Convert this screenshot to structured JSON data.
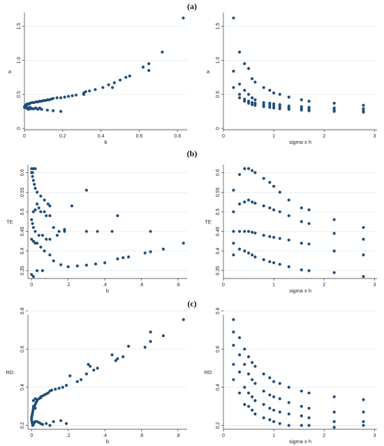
{
  "panel_labels": [
    "(a)",
    "(b)",
    "(c)"
  ],
  "colors": {
    "point": "#1f4e79",
    "grid": "#dfe9f0"
  },
  "chart_data": [
    {
      "type": "scatter",
      "title": "",
      "xlabel": "b",
      "ylabel": "a",
      "xlim": [
        0,
        0.85
      ],
      "ylim": [
        -0.02,
        1.7
      ],
      "xticks": [
        0,
        0.2,
        0.4,
        0.6,
        0.8
      ],
      "xticklabels": [
        "0",
        "0.2",
        "0.4",
        "0.6",
        "0.8"
      ],
      "yticks": [
        0,
        0.5,
        1,
        1.5
      ],
      "yticklabels": [
        "0",
        "0.5",
        "1.0",
        "1.5"
      ],
      "grid": true,
      "x": [
        0.83,
        0.72,
        0.65,
        0.65,
        0.62,
        0.55,
        0.53,
        0.5,
        0.47,
        0.46,
        0.44,
        0.41,
        0.37,
        0.34,
        0.32,
        0.31,
        0.31,
        0.27,
        0.25,
        0.23,
        0.21,
        0.19,
        0.17,
        0.15,
        0.14,
        0.13,
        0.12,
        0.11,
        0.1,
        0.09,
        0.08,
        0.07,
        0.06,
        0.05,
        0.04,
        0.03,
        0.025,
        0.02,
        0.015,
        0.01,
        0.008,
        0.006,
        0.004,
        0.003,
        0.002,
        0.001,
        0.0,
        0.005,
        0.01,
        0.02,
        0.03,
        0.05,
        0.07,
        0.09,
        0.12,
        0.15,
        0.19,
        0.02,
        0.04,
        0.06,
        0.08,
        0.03,
        0.01,
        0.005,
        0.015
      ],
      "y": [
        1.62,
        1.12,
        0.95,
        0.85,
        0.9,
        0.77,
        0.75,
        0.71,
        0.67,
        0.6,
        0.64,
        0.6,
        0.57,
        0.55,
        0.54,
        0.5,
        0.52,
        0.49,
        0.48,
        0.47,
        0.46,
        0.45,
        0.45,
        0.44,
        0.43,
        0.42,
        0.42,
        0.41,
        0.41,
        0.4,
        0.4,
        0.39,
        0.39,
        0.38,
        0.38,
        0.37,
        0.36,
        0.36,
        0.35,
        0.35,
        0.34,
        0.34,
        0.33,
        0.33,
        0.32,
        0.32,
        0.31,
        0.31,
        0.3,
        0.3,
        0.29,
        0.29,
        0.28,
        0.28,
        0.27,
        0.26,
        0.25,
        0.28,
        0.29,
        0.3,
        0.3,
        0.31,
        0.33,
        0.34,
        0.36
      ]
    },
    {
      "type": "scatter",
      "title": "",
      "xlabel": "sigma x h",
      "ylabel": "a",
      "xlim": [
        0,
        3.05
      ],
      "ylim": [
        -0.02,
        1.7
      ],
      "xticks": [
        0,
        1,
        2,
        3
      ],
      "xticklabels": [
        "0",
        "1",
        "2",
        "3"
      ],
      "yticks": [
        0,
        0.5,
        1,
        1.5
      ],
      "yticklabels": [
        "0",
        "0.5",
        "1.0",
        "1.5"
      ],
      "grid": true,
      "x": [
        0.2,
        0.2,
        0.2,
        0.32,
        0.32,
        0.32,
        0.32,
        0.42,
        0.42,
        0.42,
        0.42,
        0.5,
        0.5,
        0.5,
        0.5,
        0.57,
        0.57,
        0.57,
        0.57,
        0.63,
        0.63,
        0.63,
        0.63,
        0.8,
        0.8,
        0.8,
        0.8,
        0.92,
        0.92,
        0.92,
        0.92,
        1.0,
        1.0,
        1.0,
        1.0,
        1.12,
        1.12,
        1.12,
        1.12,
        1.3,
        1.3,
        1.3,
        1.3,
        1.55,
        1.55,
        1.55,
        1.55,
        1.7,
        1.7,
        1.7,
        1.7,
        2.2,
        2.2,
        2.2,
        2.2,
        2.78,
        2.78,
        2.78,
        2.78
      ],
      "y": [
        1.62,
        0.84,
        0.6,
        1.12,
        0.65,
        0.5,
        0.45,
        0.95,
        0.56,
        0.43,
        0.4,
        0.88,
        0.5,
        0.4,
        0.37,
        0.73,
        0.45,
        0.38,
        0.35,
        0.68,
        0.42,
        0.37,
        0.34,
        0.6,
        0.38,
        0.35,
        0.32,
        0.56,
        0.37,
        0.34,
        0.31,
        0.52,
        0.36,
        0.33,
        0.3,
        0.5,
        0.35,
        0.32,
        0.29,
        0.46,
        0.33,
        0.3,
        0.28,
        0.42,
        0.32,
        0.29,
        0.27,
        0.4,
        0.31,
        0.28,
        0.26,
        0.37,
        0.3,
        0.27,
        0.25,
        0.34,
        0.29,
        0.26,
        0.24
      ]
    },
    {
      "type": "scatter",
      "title": "",
      "xlabel": "b",
      "ylabel": "TE",
      "xlim": [
        -0.02,
        0.85
      ],
      "ylim": [
        0.33,
        0.62
      ],
      "xticks": [
        0,
        0.2,
        0.4,
        0.6,
        0.8
      ],
      "xticklabels": [
        "0",
        ".2",
        ".4",
        ".6",
        ".8"
      ],
      "yticks": [
        0.35,
        0.4,
        0.45,
        0.5,
        0.55,
        0.6
      ],
      "yticklabels": [
        "0.35",
        "0.4",
        "0.45",
        "0.5",
        "0.55",
        "0.6"
      ],
      "grid": true,
      "x": [
        0.0,
        0.005,
        0.01,
        0.015,
        0.02,
        0.03,
        0.05,
        0.07,
        0.09,
        0.1,
        0.0,
        0.005,
        0.01,
        0.02,
        0.03,
        0.04,
        0.05,
        0.07,
        0.08,
        0.1,
        0.12,
        0.15,
        0.18,
        0.22,
        0.3,
        0.47,
        0.0,
        0.005,
        0.01,
        0.02,
        0.04,
        0.06,
        0.08,
        0.1,
        0.14,
        0.18,
        0.3,
        0.36,
        0.44,
        0.65,
        0.0,
        0.01,
        0.02,
        0.03,
        0.05,
        0.07,
        0.1,
        0.12,
        0.16,
        0.2,
        0.25,
        0.3,
        0.35,
        0.4,
        0.47,
        0.5,
        0.53,
        0.62,
        0.65,
        0.72,
        0.83,
        0.0,
        0.01,
        0.03,
        0.06,
        0.01,
        0.02
      ],
      "y": [
        0.6,
        0.59,
        0.58,
        0.57,
        0.56,
        0.55,
        0.54,
        0.53,
        0.52,
        0.515,
        0.61,
        0.6,
        0.61,
        0.61,
        0.52,
        0.51,
        0.5,
        0.5,
        0.49,
        0.49,
        0.46,
        0.45,
        0.45,
        0.515,
        0.555,
        0.49,
        0.48,
        0.47,
        0.46,
        0.45,
        0.44,
        0.44,
        0.43,
        0.43,
        0.44,
        0.455,
        0.45,
        0.45,
        0.45,
        0.45,
        0.43,
        0.425,
        0.42,
        0.42,
        0.41,
        0.4,
        0.39,
        0.375,
        0.365,
        0.36,
        0.362,
        0.364,
        0.367,
        0.37,
        0.38,
        0.383,
        0.385,
        0.395,
        0.398,
        0.405,
        0.42,
        0.34,
        0.335,
        0.35,
        0.35,
        0.5,
        0.505
      ]
    },
    {
      "type": "scatter",
      "title": "",
      "xlabel": "sigma x h",
      "ylabel": "TE",
      "xlim": [
        0,
        3.05
      ],
      "ylim": [
        0.33,
        0.62
      ],
      "xticks": [
        0,
        1,
        2,
        3
      ],
      "xticklabels": [
        "0",
        "1",
        "2",
        "3"
      ],
      "yticks": [
        0.35,
        0.4,
        0.45,
        0.5,
        0.55,
        0.6
      ],
      "yticklabels": [
        "0.35",
        "0.4",
        "0.45",
        "0.5",
        "0.55",
        "0.6"
      ],
      "grid": true,
      "x": [
        0.2,
        0.2,
        0.2,
        0.2,
        0.2,
        0.32,
        0.32,
        0.32,
        0.32,
        0.42,
        0.42,
        0.42,
        0.42,
        0.5,
        0.5,
        0.5,
        0.5,
        0.57,
        0.57,
        0.57,
        0.57,
        0.63,
        0.63,
        0.63,
        0.63,
        0.8,
        0.8,
        0.8,
        0.8,
        0.92,
        0.92,
        0.92,
        0.92,
        1.0,
        1.0,
        1.0,
        1.0,
        1.12,
        1.12,
        1.12,
        1.12,
        1.3,
        1.3,
        1.3,
        1.3,
        1.55,
        1.55,
        1.55,
        1.55,
        1.7,
        1.7,
        1.7,
        1.7,
        2.2,
        2.2,
        2.2,
        2.2,
        2.78,
        2.78,
        2.78,
        2.78
      ],
      "y": [
        0.555,
        0.5,
        0.45,
        0.42,
        0.39,
        0.595,
        0.52,
        0.45,
        0.405,
        0.61,
        0.525,
        0.45,
        0.4,
        0.61,
        0.53,
        0.45,
        0.395,
        0.605,
        0.525,
        0.448,
        0.39,
        0.6,
        0.522,
        0.446,
        0.385,
        0.585,
        0.515,
        0.44,
        0.378,
        0.575,
        0.51,
        0.437,
        0.373,
        0.565,
        0.505,
        0.435,
        0.37,
        0.55,
        0.5,
        0.432,
        0.366,
        0.53,
        0.49,
        0.428,
        0.36,
        0.51,
        0.475,
        0.42,
        0.352,
        0.505,
        0.47,
        0.418,
        0.35,
        0.48,
        0.445,
        0.4,
        0.345,
        0.46,
        0.43,
        0.39,
        0.335
      ]
    },
    {
      "type": "scatter",
      "title": "",
      "xlabel": "b",
      "ylabel": "RD",
      "xlim": [
        -0.02,
        0.85
      ],
      "ylim": [
        0.18,
        0.78
      ],
      "xticks": [
        0,
        0.2,
        0.4,
        0.6,
        0.8
      ],
      "xticklabels": [
        "0",
        ".2",
        ".4",
        ".6",
        ".8"
      ],
      "yticks": [
        0.2,
        0.4,
        0.6,
        0.8
      ],
      "yticklabels": [
        "0.2",
        "0.4",
        "0.6",
        "0.8"
      ],
      "grid": true,
      "x": [
        0.83,
        0.72,
        0.65,
        0.65,
        0.62,
        0.53,
        0.5,
        0.47,
        0.46,
        0.44,
        0.31,
        0.32,
        0.34,
        0.36,
        0.3,
        0.27,
        0.25,
        0.21,
        0.19,
        0.17,
        0.15,
        0.13,
        0.11,
        0.1,
        0.09,
        0.08,
        0.07,
        0.06,
        0.05,
        0.04,
        0.03,
        0.025,
        0.02,
        0.015,
        0.01,
        0.008,
        0.006,
        0.004,
        0.002,
        0.0,
        0.0,
        0.002,
        0.004,
        0.006,
        0.01,
        0.015,
        0.02,
        0.03,
        0.04,
        0.05,
        0.06,
        0.08,
        0.1,
        0.12,
        0.16,
        0.19,
        0.01,
        0.02,
        0.03,
        0.05,
        0.02,
        0.01
      ],
      "y": [
        0.755,
        0.67,
        0.69,
        0.64,
        0.61,
        0.615,
        0.56,
        0.55,
        0.54,
        0.57,
        0.52,
        0.51,
        0.49,
        0.5,
        0.47,
        0.44,
        0.43,
        0.46,
        0.41,
        0.4,
        0.395,
        0.39,
        0.385,
        0.38,
        0.37,
        0.365,
        0.36,
        0.355,
        0.35,
        0.34,
        0.33,
        0.32,
        0.31,
        0.3,
        0.29,
        0.28,
        0.27,
        0.26,
        0.25,
        0.24,
        0.23,
        0.22,
        0.21,
        0.2,
        0.205,
        0.215,
        0.22,
        0.22,
        0.215,
        0.21,
        0.205,
        0.21,
        0.2,
        0.22,
        0.225,
        0.21,
        0.33,
        0.34,
        0.335,
        0.345,
        0.29,
        0.3
      ]
    },
    {
      "type": "scatter",
      "title": "",
      "xlabel": "sigma x h",
      "ylabel": "RD",
      "xlim": [
        0,
        3.05
      ],
      "ylim": [
        0.18,
        0.78
      ],
      "xticks": [
        0,
        1,
        2,
        3
      ],
      "xticklabels": [
        "0",
        "1",
        "2",
        "3"
      ],
      "yticks": [
        0.2,
        0.4,
        0.6,
        0.8
      ],
      "yticklabels": [
        "0.2",
        "0.4",
        "0.6",
        "0.8"
      ],
      "grid": true,
      "x": [
        0.2,
        0.2,
        0.2,
        0.2,
        0.2,
        0.32,
        0.32,
        0.32,
        0.32,
        0.42,
        0.42,
        0.42,
        0.42,
        0.5,
        0.5,
        0.5,
        0.5,
        0.57,
        0.57,
        0.57,
        0.57,
        0.63,
        0.63,
        0.63,
        0.63,
        0.8,
        0.8,
        0.8,
        0.8,
        0.92,
        0.92,
        0.92,
        0.92,
        1.0,
        1.0,
        1.0,
        1.0,
        1.12,
        1.12,
        1.12,
        1.12,
        1.3,
        1.3,
        1.3,
        1.3,
        1.55,
        1.55,
        1.55,
        1.55,
        1.7,
        1.7,
        1.7,
        1.7,
        2.2,
        2.2,
        2.2,
        2.2,
        2.78,
        2.78,
        2.78,
        2.78
      ],
      "y": [
        0.755,
        0.69,
        0.62,
        0.52,
        0.44,
        0.66,
        0.57,
        0.48,
        0.37,
        0.6,
        0.52,
        0.4,
        0.31,
        0.56,
        0.47,
        0.37,
        0.3,
        0.53,
        0.44,
        0.35,
        0.28,
        0.51,
        0.42,
        0.33,
        0.26,
        0.47,
        0.38,
        0.31,
        0.24,
        0.45,
        0.36,
        0.29,
        0.23,
        0.43,
        0.35,
        0.28,
        0.22,
        0.42,
        0.34,
        0.27,
        0.21,
        0.4,
        0.32,
        0.26,
        0.2,
        0.38,
        0.3,
        0.25,
        0.2,
        0.37,
        0.29,
        0.24,
        0.2,
        0.35,
        0.27,
        0.22,
        0.19,
        0.335,
        0.27,
        0.22,
        0.2
      ]
    }
  ]
}
